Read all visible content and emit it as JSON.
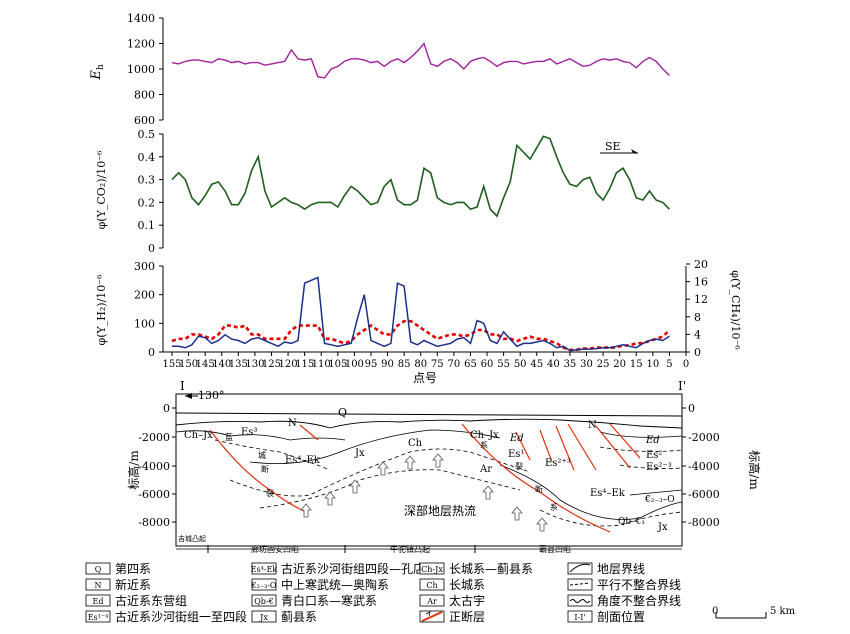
{
  "chart_data": [
    {
      "type": "line",
      "ylabel": "E_h",
      "ylim": [
        600,
        1400
      ],
      "yticks": [
        "1400",
        "1200",
        "1000",
        "800",
        "600"
      ],
      "series": [
        {
          "color": "#a0219b",
          "x": [
            155,
            153,
            151,
            149,
            147,
            145,
            143,
            141,
            139,
            137,
            135,
            133,
            131,
            129,
            127,
            125,
            123,
            121,
            119,
            117,
            115,
            113,
            111,
            109,
            107,
            105,
            103,
            101,
            99,
            97,
            95,
            93,
            91,
            89,
            87,
            85,
            83,
            81,
            79,
            77,
            75,
            73,
            71,
            69,
            67,
            65,
            63,
            61,
            59,
            57,
            55,
            53,
            51,
            49,
            47,
            45,
            43,
            41,
            39,
            37,
            35,
            33,
            31,
            29,
            27,
            25,
            23,
            21,
            19,
            17,
            15,
            13,
            11,
            9,
            7,
            5
          ],
          "y": [
            1050,
            1040,
            1060,
            1070,
            1070,
            1060,
            1050,
            1080,
            1070,
            1050,
            1060,
            1040,
            1050,
            1050,
            1030,
            1040,
            1050,
            1060,
            1150,
            1080,
            1070,
            1080,
            940,
            930,
            1000,
            1020,
            1060,
            1080,
            1080,
            1070,
            1050,
            1060,
            1020,
            1060,
            1080,
            1050,
            1090,
            1140,
            1200,
            1040,
            1020,
            1060,
            1080,
            1050,
            1000,
            1060,
            1080,
            1090,
            1060,
            1020,
            1050,
            1060,
            1060,
            1040,
            1050,
            1060,
            1060,
            1080,
            1040,
            1060,
            1080,
            1050,
            1020,
            1030,
            1060,
            1080,
            1070,
            1080,
            1060,
            1050,
            1010,
            1060,
            1090,
            1060,
            1000,
            950
          ]
        }
      ]
    },
    {
      "type": "line",
      "ylabel": "φ(Y_CO₂)/10⁻⁶",
      "ylim": [
        0,
        0.5
      ],
      "yticks": [
        "0.5",
        "0.4",
        "0.3",
        "0.2",
        "0.1",
        "0"
      ],
      "annotation": "SE",
      "series": [
        {
          "color": "#1e5f1e",
          "x": [
            155,
            153,
            151,
            149,
            147,
            145,
            143,
            141,
            139,
            137,
            135,
            133,
            131,
            129,
            127,
            125,
            123,
            121,
            119,
            117,
            115,
            113,
            111,
            109,
            107,
            105,
            103,
            101,
            99,
            97,
            95,
            93,
            91,
            89,
            87,
            85,
            83,
            81,
            79,
            77,
            75,
            73,
            71,
            69,
            67,
            65,
            63,
            61,
            59,
            57,
            55,
            53,
            51,
            49,
            47,
            45,
            43,
            41,
            39,
            37,
            35,
            33,
            31,
            29,
            27,
            25,
            23,
            21,
            19,
            17,
            15,
            13,
            11,
            9,
            7,
            5
          ],
          "y": [
            0.3,
            0.33,
            0.3,
            0.22,
            0.19,
            0.23,
            0.28,
            0.29,
            0.25,
            0.19,
            0.19,
            0.24,
            0.34,
            0.4,
            0.25,
            0.18,
            0.2,
            0.22,
            0.2,
            0.19,
            0.17,
            0.19,
            0.2,
            0.2,
            0.2,
            0.18,
            0.23,
            0.27,
            0.25,
            0.22,
            0.19,
            0.2,
            0.27,
            0.3,
            0.21,
            0.19,
            0.19,
            0.21,
            0.35,
            0.33,
            0.22,
            0.2,
            0.19,
            0.2,
            0.2,
            0.17,
            0.18,
            0.27,
            0.17,
            0.14,
            0.22,
            0.29,
            0.45,
            0.42,
            0.39,
            0.44,
            0.49,
            0.48,
            0.4,
            0.33,
            0.28,
            0.27,
            0.3,
            0.31,
            0.24,
            0.21,
            0.26,
            0.33,
            0.35,
            0.3,
            0.22,
            0.21,
            0.25,
            0.21,
            0.2,
            0.17
          ]
        }
      ]
    },
    {
      "type": "line",
      "ylabel": "φ(Y_H₂)/10⁻⁶",
      "ylabel_right": "φ(Y_CH₄)/10⁻⁶",
      "ylim": [
        0,
        300
      ],
      "ylim_right": [
        0,
        20
      ],
      "yticks": [
        "300",
        "200",
        "100",
        "0"
      ],
      "yticks_right": [
        "20",
        "16",
        "12",
        "8",
        "4",
        "0"
      ],
      "xticks": [
        "155",
        "150",
        "145",
        "140",
        "135",
        "130",
        "125",
        "120",
        "115",
        "110",
        "105",
        "100",
        "95",
        "90",
        "85",
        "80",
        "75",
        "70",
        "65",
        "60",
        "55",
        "50",
        "45",
        "40",
        "35",
        "30",
        "25",
        "20",
        "15",
        "10",
        "5",
        "0"
      ],
      "xlabel": "点号",
      "series": [
        {
          "name": "H2",
          "color": "#1a2f8a",
          "x": [
            155,
            153,
            151,
            149,
            147,
            145,
            143,
            141,
            139,
            137,
            135,
            133,
            131,
            129,
            127,
            125,
            123,
            121,
            119,
            117,
            115,
            113,
            111,
            109,
            107,
            105,
            103,
            101,
            99,
            97,
            95,
            93,
            91,
            89,
            87,
            85,
            83,
            81,
            79,
            77,
            75,
            73,
            71,
            69,
            67,
            65,
            63,
            61,
            59,
            57,
            55,
            53,
            51,
            49,
            47,
            45,
            43,
            41,
            39,
            37,
            35,
            33,
            31,
            29,
            27,
            25,
            23,
            21,
            19,
            17,
            15,
            13,
            11,
            9,
            7,
            5
          ],
          "y": [
            20,
            20,
            15,
            25,
            55,
            50,
            30,
            40,
            60,
            45,
            40,
            30,
            45,
            50,
            40,
            30,
            20,
            35,
            30,
            40,
            240,
            250,
            260,
            30,
            25,
            20,
            25,
            30,
            120,
            200,
            40,
            30,
            20,
            30,
            240,
            230,
            35,
            25,
            40,
            30,
            20,
            25,
            30,
            45,
            50,
            30,
            110,
            100,
            40,
            30,
            70,
            45,
            20,
            30,
            30,
            35,
            40,
            30,
            15,
            20,
            5,
            8,
            10,
            10,
            12,
            15,
            15,
            20,
            25,
            20,
            15,
            30,
            40,
            45,
            40,
            55
          ]
        },
        {
          "name": "CH4",
          "color": "#e60000",
          "x": [
            155,
            153,
            151,
            149,
            147,
            145,
            143,
            141,
            139,
            137,
            135,
            133,
            131,
            129,
            127,
            125,
            123,
            121,
            119,
            117,
            115,
            113,
            111,
            109,
            107,
            105,
            103,
            101,
            99,
            97,
            95,
            93,
            91,
            89,
            87,
            85,
            83,
            81,
            79,
            77,
            75,
            73,
            71,
            69,
            67,
            65,
            63,
            61,
            59,
            57,
            55,
            53,
            51,
            49,
            47,
            45,
            43,
            41,
            39,
            37,
            35,
            33,
            31,
            29,
            27,
            25,
            23,
            21,
            19,
            17,
            15,
            13,
            11,
            9,
            7,
            5
          ],
          "y": [
            2.5,
            3,
            3,
            4,
            4,
            3.5,
            3,
            4,
            6,
            6,
            5.5,
            6,
            4,
            4,
            3,
            3,
            3,
            3,
            5,
            6,
            6,
            6,
            6,
            3,
            3,
            2.5,
            2,
            2.5,
            4,
            5,
            6,
            5,
            4,
            4,
            6,
            7,
            7,
            6,
            5,
            4,
            3,
            3.5,
            4,
            4,
            3.5,
            4,
            5,
            5,
            4,
            4,
            3,
            3,
            2.5,
            3,
            3.5,
            3,
            3,
            2.5,
            2,
            1,
            0.5,
            0.5,
            0.8,
            0.8,
            1,
            1,
            1,
            1,
            1.5,
            1.5,
            2,
            2,
            2.5,
            3,
            3.5,
            5
          ]
        }
      ]
    }
  ],
  "section": {
    "label_left": "I",
    "label_right": "I'",
    "azimuth": "130°",
    "ylabel": "标高/m",
    "yticks": [
      "0",
      "-2000",
      "-4000",
      "-6000",
      "-8000"
    ],
    "title": "深部地层热流",
    "units": {
      "Q": "Q",
      "N1": "N",
      "N2": "N",
      "Ch": "Ch",
      "ChJx1": "Ch–Jx",
      "ChJx2": "Ch–Jx",
      "Jx": "Jx",
      "Jx2": "Jx",
      "Ar": "Ar",
      "Es3": "Es³",
      "Es4Ek": "Es⁴–Ek",
      "Es4Ek2": "Es⁴–Ek",
      "Ed": "Ed",
      "Ed2": "Ed",
      "Es1": "Es¹",
      "Es23": "Es²⁺³",
      "Es2": "Es²",
      "Es3b": "Es³",
      "Es23b": "Es²⁻³",
      "C2O": "€₂₋₃–O",
      "QbC": "Qb–€₁"
    },
    "fault_chars": [
      "蓝",
      "城",
      "断",
      "裂",
      "系",
      "断",
      "裂",
      "系"
    ],
    "structures": [
      "吉城凸起",
      "廊坊固安凹陷",
      "牛驼镇凸起",
      "霸县凹陷"
    ]
  },
  "legend": [
    {
      "sym": "Q",
      "label": "第四系"
    },
    {
      "sym": "N",
      "label": "新近系"
    },
    {
      "sym": "Ed",
      "label": "古近系东营组"
    },
    {
      "sym": "Es¹⁻⁴",
      "label": "古近系沙河街组一至四段"
    },
    {
      "sym": "Es⁴-Ek",
      "label": "古近系沙河街组四段—孔店组"
    },
    {
      "sym": "€₂₋₃-O",
      "label": "中上寒武统—奥陶系"
    },
    {
      "sym": "Qb-€",
      "label": "青白口系—寒武系"
    },
    {
      "sym": "Jx",
      "label": "蓟县系"
    },
    {
      "sym": "Ch-Jx",
      "label": "长城系—蓟县系"
    },
    {
      "sym": "Ch",
      "label": "长城系"
    },
    {
      "sym": "Ar",
      "label": "太古宇"
    },
    {
      "sym": "fault",
      "label": "正断层"
    },
    {
      "sym": "line1",
      "label": "地层界线"
    },
    {
      "sym": "line2",
      "label": "平行不整合界线"
    },
    {
      "sym": "line3",
      "label": "角度不整合界线"
    },
    {
      "sym": "I-I'",
      "label": "剖面位置"
    }
  ],
  "scalebar": {
    "zero": "0",
    "end": "5 km"
  }
}
